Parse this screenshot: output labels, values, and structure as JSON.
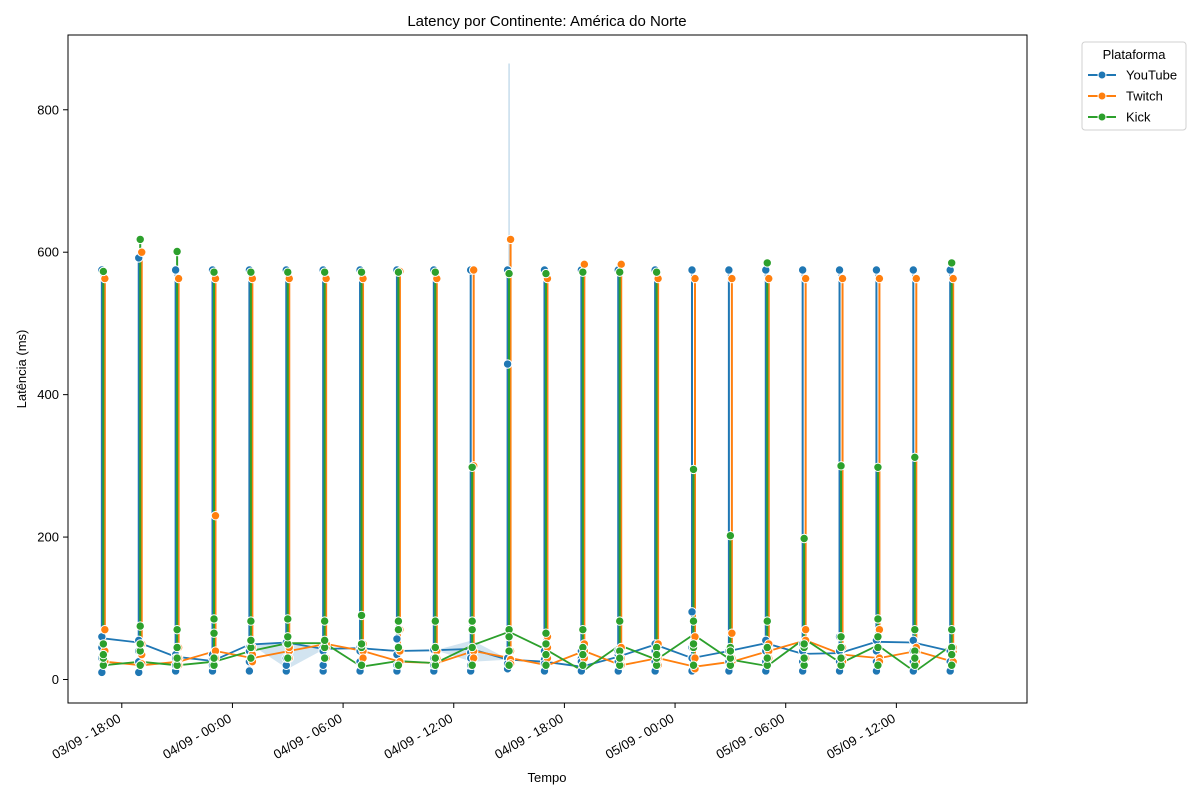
{
  "chart_data": {
    "type": "line",
    "title": "Latency por Continente: América do Norte",
    "xlabel": "Tempo",
    "ylabel": "Latência (ms)",
    "xlim": [
      "2025-09-03 15:05",
      "2025-09-05 19:05"
    ],
    "ylim": [
      -33,
      905
    ],
    "y_ticks": [
      0,
      200,
      400,
      600,
      800
    ],
    "x_ticks": [
      {
        "t": "2025-09-03 18:00",
        "label": "03/09 - 18:00"
      },
      {
        "t": "2025-09-04 00:00",
        "label": "04/09 - 00:00"
      },
      {
        "t": "2025-09-04 06:00",
        "label": "04/09 - 06:00"
      },
      {
        "t": "2025-09-04 12:00",
        "label": "04/09 - 12:00"
      },
      {
        "t": "2025-09-04 18:00",
        "label": "04/09 - 18:00"
      },
      {
        "t": "2025-09-05 00:00",
        "label": "05/09 - 00:00"
      },
      {
        "t": "2025-09-05 06:00",
        "label": "05/09 - 06:00"
      },
      {
        "t": "2025-09-05 12:00",
        "label": "05/09 - 12:00"
      }
    ],
    "grid": false,
    "legend": {
      "title": "Plataforma",
      "placement": "outside-top-right"
    },
    "times": [
      "2025-09-03 17:00",
      "2025-09-03 19:00",
      "2025-09-03 21:00",
      "2025-09-03 23:00",
      "2025-09-04 01:00",
      "2025-09-04 03:00",
      "2025-09-04 05:00",
      "2025-09-04 07:00",
      "2025-09-04 09:00",
      "2025-09-04 11:00",
      "2025-09-04 13:00",
      "2025-09-04 15:00",
      "2025-09-04 17:00",
      "2025-09-04 19:00",
      "2025-09-04 21:00",
      "2025-09-04 23:00",
      "2025-09-05 01:00",
      "2025-09-05 03:00",
      "2025-09-05 05:00",
      "2025-09-05 07:00",
      "2025-09-05 09:00",
      "2025-09-05 11:00",
      "2025-09-05 13:00",
      "2025-09-05 15:00"
    ],
    "series": [
      {
        "name": "YouTube",
        "color": "#1f77b4",
        "points": [
          [
            60,
            10,
            30,
            45,
            575
          ],
          [
            55,
            10,
            25,
            40,
            592
          ],
          [
            35,
            12,
            20,
            30,
            575
          ],
          [
            30,
            12,
            20,
            35,
            575
          ],
          [
            45,
            12,
            25,
            40,
            575
          ],
          [
            52,
            12,
            20,
            30,
            575
          ],
          [
            45,
            12,
            20,
            40,
            575
          ],
          [
            45,
            12,
            25,
            40,
            575
          ],
          [
            57,
            12,
            20,
            35,
            575
          ],
          [
            42,
            12,
            20,
            30,
            575
          ],
          [
            38,
            12,
            20,
            30,
            575
          ],
          [
            30,
            15,
            22,
            443,
            575
          ],
          [
            28,
            12,
            22,
            40,
            575
          ],
          [
            30,
            12,
            25,
            40,
            575
          ],
          [
            35,
            12,
            25,
            40,
            575
          ],
          [
            50,
            12,
            25,
            40,
            575
          ],
          [
            45,
            12,
            30,
            95,
            575
          ],
          [
            42,
            12,
            25,
            40,
            575
          ],
          [
            55,
            12,
            25,
            40,
            575
          ],
          [
            50,
            12,
            25,
            40,
            575
          ],
          [
            40,
            12,
            25,
            60,
            575
          ],
          [
            55,
            12,
            25,
            40,
            575
          ],
          [
            55,
            12,
            25,
            40,
            575
          ],
          [
            40,
            12,
            25,
            40,
            575
          ]
        ],
        "line": [
          58,
          52,
          32,
          26,
          49,
          52,
          43,
          44,
          40,
          41,
          43,
          28,
          25,
          18,
          32,
          49,
          30,
          40,
          51,
          36,
          37,
          53,
          52,
          40
        ],
        "ci_low": [
          null,
          null,
          null,
          null,
          null,
          15,
          null,
          null,
          null,
          null,
          25,
          null,
          null,
          null,
          null,
          null,
          null,
          null,
          null,
          null,
          null,
          null,
          null,
          null
        ],
        "ci_high": [
          null,
          null,
          null,
          null,
          null,
          52,
          null,
          null,
          null,
          null,
          55,
          null,
          null,
          null,
          null,
          null,
          null,
          null,
          null,
          null,
          null,
          null,
          null,
          null
        ]
      },
      {
        "name": "Twitch",
        "color": "#ff7f0e",
        "points": [
          [
            70,
            25,
            40,
            563
          ],
          [
            600,
            22,
            35,
            50
          ],
          [
            563,
            20,
            30,
            45
          ],
          [
            230,
            40,
            30,
            563
          ],
          [
            563,
            35,
            25,
            45
          ],
          [
            563,
            40,
            30,
            45
          ],
          [
            563,
            45,
            30,
            50
          ],
          [
            563,
            40,
            30,
            50
          ],
          [
            573,
            70,
            25,
            40
          ],
          [
            25,
            40,
            30,
            563
          ],
          [
            575,
            40,
            30,
            300
          ],
          [
            618,
            28,
            22,
            40
          ],
          [
            563,
            45,
            30,
            60
          ],
          [
            583,
            40,
            30,
            50
          ],
          [
            583,
            20,
            30,
            45
          ],
          [
            563,
            20,
            30,
            50
          ],
          [
            563,
            15,
            30,
            60
          ],
          [
            563,
            25,
            30,
            65
          ],
          [
            563,
            40,
            30,
            50
          ],
          [
            563,
            55,
            30,
            70
          ],
          [
            563,
            30,
            25,
            45
          ],
          [
            563,
            30,
            25,
            70
          ],
          [
            563,
            40,
            25,
            45
          ],
          [
            563,
            40,
            25,
            45
          ]
        ],
        "line": [
          25,
          20,
          25,
          40,
          30,
          40,
          50,
          40,
          25,
          23,
          40,
          30,
          20,
          40,
          20,
          30,
          18,
          25,
          40,
          55,
          35,
          30,
          40,
          25
        ]
      },
      {
        "name": "Kick",
        "color": "#2ca02c",
        "points": [
          [
            573,
            50,
            20,
            30,
            35
          ],
          [
            618,
            75,
            20,
            40,
            50
          ],
          [
            601,
            70,
            20,
            30,
            45
          ],
          [
            572,
            85,
            20,
            30,
            65
          ],
          [
            572,
            82,
            30,
            45,
            55
          ],
          [
            572,
            85,
            30,
            50,
            60
          ],
          [
            572,
            82,
            30,
            45,
            55
          ],
          [
            572,
            90,
            20,
            45,
            50
          ],
          [
            572,
            82,
            20,
            45,
            70
          ],
          [
            572,
            82,
            20,
            45,
            30
          ],
          [
            298,
            82,
            20,
            45,
            70
          ],
          [
            570,
            70,
            20,
            40,
            60
          ],
          [
            570,
            65,
            20,
            35,
            50
          ],
          [
            572,
            70,
            20,
            45,
            35
          ],
          [
            572,
            82,
            20,
            40,
            30
          ],
          [
            572,
            45,
            20,
            30,
            35
          ],
          [
            295,
            82,
            20,
            45,
            50
          ],
          [
            202,
            45,
            20,
            30,
            40
          ],
          [
            585,
            82,
            20,
            45,
            30
          ],
          [
            198,
            45,
            20,
            30,
            50
          ],
          [
            300,
            45,
            20,
            30,
            60
          ],
          [
            298,
            85,
            20,
            45,
            60
          ],
          [
            312,
            70,
            20,
            40,
            30
          ],
          [
            585,
            70,
            20,
            45,
            35
          ]
        ],
        "line": [
          20,
          25,
          20,
          25,
          40,
          51,
          51,
          18,
          26,
          23,
          48,
          67,
          42,
          12,
          48,
          28,
          63,
          28,
          19,
          57,
          23,
          48,
          11,
          48
        ]
      }
    ],
    "outlier_whisker": {
      "t_index": 11,
      "low": 560,
      "high": 865
    }
  }
}
